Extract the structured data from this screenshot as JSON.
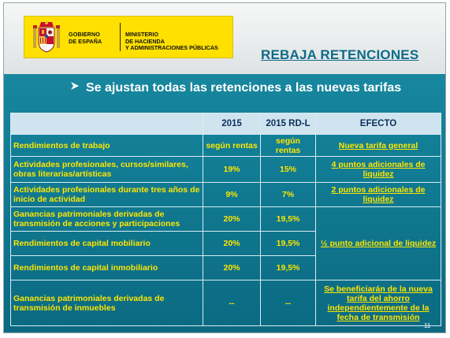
{
  "header": {
    "gov_line1": "GOBIERNO",
    "gov_line2": "DE ESPAÑA",
    "ministry_line1": "MINISTERIO",
    "ministry_line2": "DE HACIENDA",
    "ministry_line3": "Y ADMINISTRACIONES PÚBLICAS"
  },
  "section_title": "REBAJA RETENCIONES",
  "bullet": "Se ajustan todas las retenciones a las nuevas tarifas",
  "table": {
    "columns": [
      "",
      "2015",
      "2015 RD-L",
      "EFECTO"
    ],
    "rows": [
      {
        "label": "Rendimientos de trabajo",
        "y2015": "según rentas",
        "rdl": "según rentas",
        "effect": "Nueva tarifa general"
      },
      {
        "label": "Actividades profesionales, cursos/similares, obras literarias/artísticas",
        "y2015": "19%",
        "rdl": "15%",
        "effect": "4 puntos adicionales de liquidez"
      },
      {
        "label": "Actividades profesionales durante tres años de inicio de actividad",
        "y2015": "9%",
        "rdl": "7%",
        "effect": "2 puntos adicionales de liquidez"
      },
      {
        "label": "Ganancias patrimoniales derivadas de transmisión de acciones y participaciones",
        "y2015": "20%",
        "rdl": "19,5%",
        "effect": "½ punto adicional de liquidez"
      },
      {
        "label": "Rendimientos de capital mobiliario",
        "y2015": "20%",
        "rdl": "19,5%"
      },
      {
        "label": "Rendimientos de capital inmobiliario",
        "y2015": "20%",
        "rdl": "19,5%"
      },
      {
        "label": "Ganancias patrimoniales derivadas de transmisión de inmuebles",
        "y2015": "--",
        "rdl": "--",
        "effect": "Se beneficiarán de la nueva tarifa del ahorro independientemente de la fecha de transmisión"
      }
    ]
  },
  "page_number": "11"
}
